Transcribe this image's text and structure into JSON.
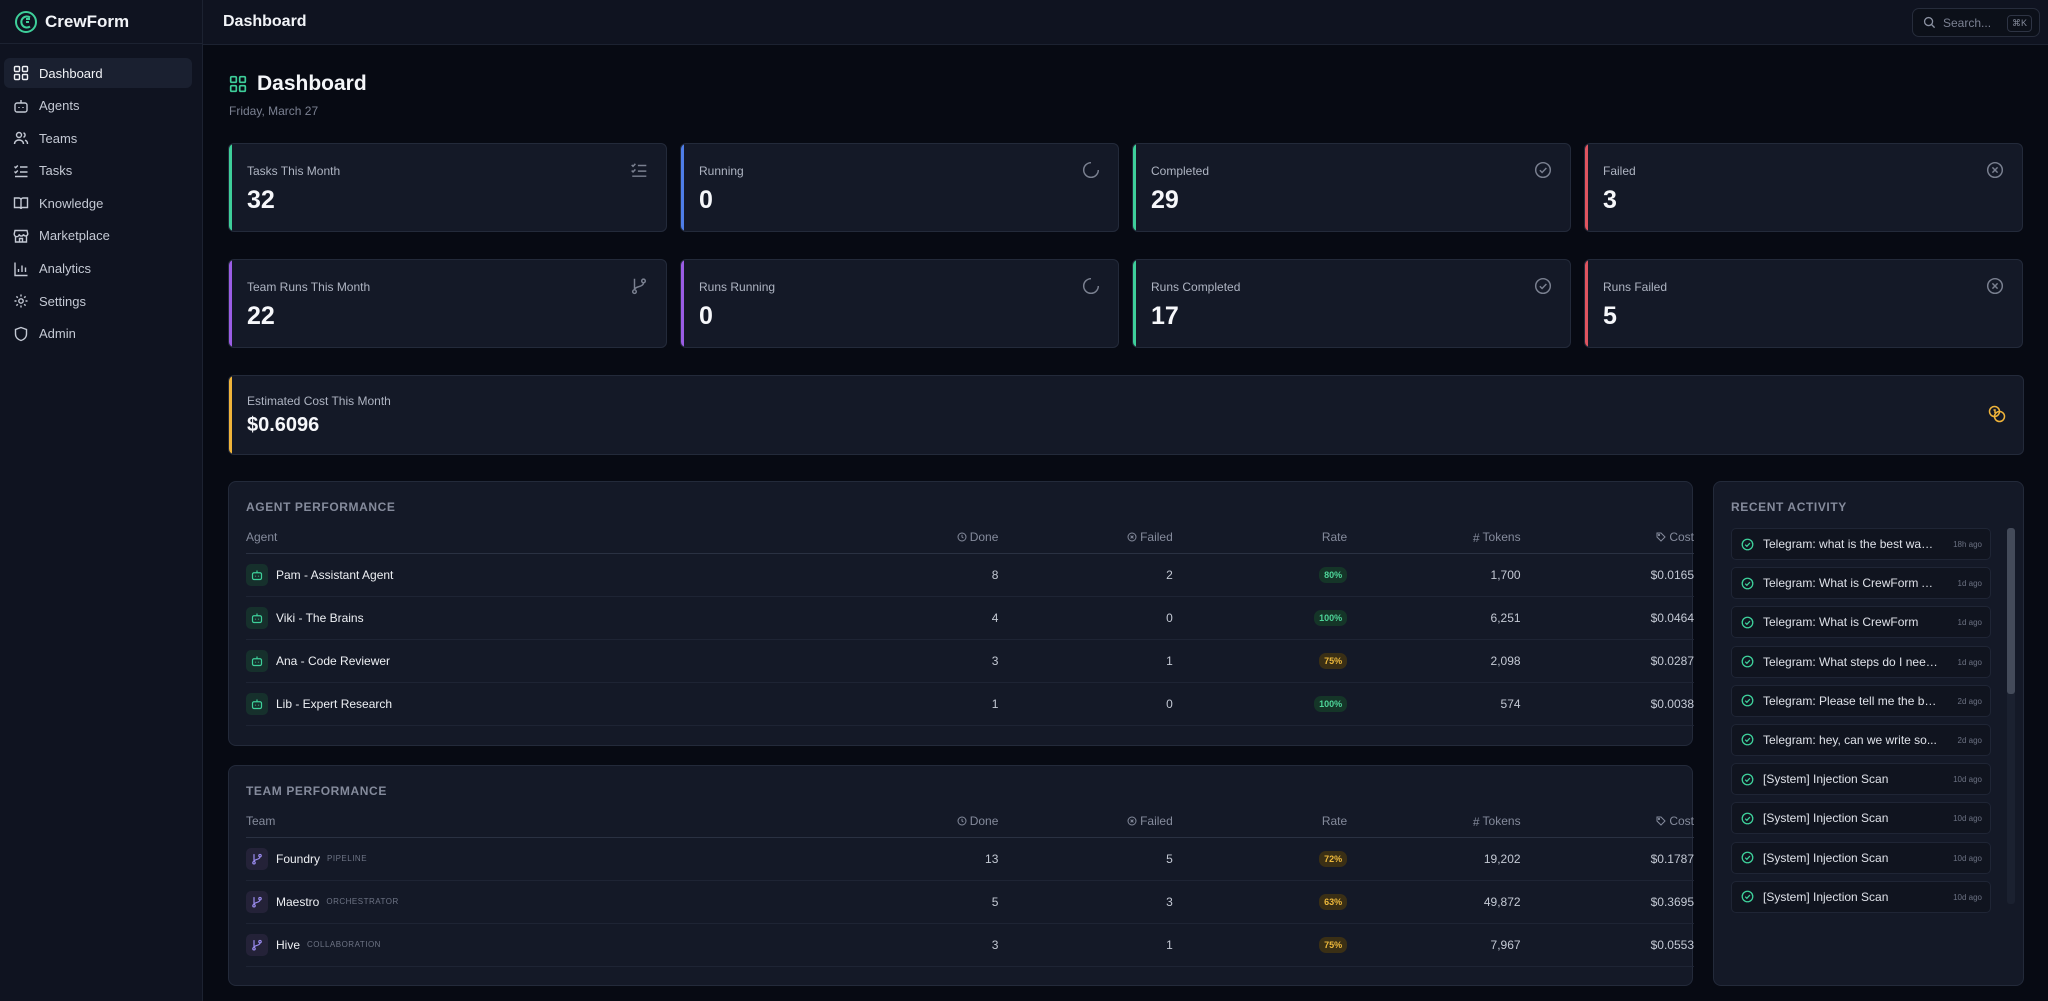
{
  "app": {
    "name": "CrewForm"
  },
  "sidebar": {
    "items": [
      {
        "label": "Dashboard",
        "icon": "dashboard-icon",
        "active": true
      },
      {
        "label": "Agents",
        "icon": "bot-icon"
      },
      {
        "label": "Teams",
        "icon": "users-icon"
      },
      {
        "label": "Tasks",
        "icon": "list-checks-icon"
      },
      {
        "label": "Knowledge",
        "icon": "book-icon"
      },
      {
        "label": "Marketplace",
        "icon": "store-icon"
      },
      {
        "label": "Analytics",
        "icon": "chart-icon"
      },
      {
        "label": "Settings",
        "icon": "gear-icon"
      },
      {
        "label": "Admin",
        "icon": "shield-icon"
      }
    ]
  },
  "topbar": {
    "title": "Dashboard",
    "search_placeholder": "Search...",
    "shortcut": "⌘K"
  },
  "page": {
    "title": "Dashboard",
    "date": "Friday, March 27"
  },
  "stats_tasks": [
    {
      "label": "Tasks This Month",
      "value": "32",
      "accent": "#3ecf9a",
      "icon": "list-checks-icon"
    },
    {
      "label": "Running",
      "value": "0",
      "accent": "#4f7ee8",
      "icon": "spinner-icon"
    },
    {
      "label": "Completed",
      "value": "29",
      "accent": "#3ecf9a",
      "icon": "check-circle-icon"
    },
    {
      "label": "Failed",
      "value": "3",
      "accent": "#e05560",
      "icon": "x-circle-icon"
    }
  ],
  "stats_runs": [
    {
      "label": "Team Runs This Month",
      "value": "22",
      "accent": "#9b5de5",
      "icon": "git-branch-icon"
    },
    {
      "label": "Runs Running",
      "value": "0",
      "accent": "#9b5de5",
      "icon": "spinner-icon"
    },
    {
      "label": "Runs Completed",
      "value": "17",
      "accent": "#3ecf9a",
      "icon": "check-circle-icon"
    },
    {
      "label": "Runs Failed",
      "value": "5",
      "accent": "#e05560",
      "icon": "x-circle-icon"
    }
  ],
  "cost": {
    "label": "Estimated Cost This Month",
    "value": "$0.6096",
    "accent": "#f0b43a",
    "icon": "coins-icon"
  },
  "agent_performance": {
    "title": "AGENT PERFORMANCE",
    "columns": [
      "Agent",
      "Done",
      "Failed",
      "Rate",
      "Tokens",
      "Cost"
    ],
    "rows": [
      {
        "name": "Pam - Assistant Agent",
        "done": "8",
        "failed": "2",
        "rate": "80%",
        "rate_status": "good",
        "tokens": "1,700",
        "cost": "$0.0165"
      },
      {
        "name": "Viki - The Brains",
        "done": "4",
        "failed": "0",
        "rate": "100%",
        "rate_status": "good",
        "tokens": "6,251",
        "cost": "$0.0464"
      },
      {
        "name": "Ana - Code Reviewer",
        "done": "3",
        "failed": "1",
        "rate": "75%",
        "rate_status": "warn",
        "tokens": "2,098",
        "cost": "$0.0287"
      },
      {
        "name": "Lib - Expert Research",
        "done": "1",
        "failed": "0",
        "rate": "100%",
        "rate_status": "good",
        "tokens": "574",
        "cost": "$0.0038"
      }
    ]
  },
  "team_performance": {
    "title": "TEAM PERFORMANCE",
    "columns": [
      "Team",
      "Done",
      "Failed",
      "Rate",
      "Tokens",
      "Cost"
    ],
    "rows": [
      {
        "name": "Foundry",
        "tag": "PIPELINE",
        "done": "13",
        "failed": "5",
        "rate": "72%",
        "rate_status": "warn",
        "tokens": "19,202",
        "cost": "$0.1787"
      },
      {
        "name": "Maestro",
        "tag": "ORCHESTRATOR",
        "done": "5",
        "failed": "3",
        "rate": "63%",
        "rate_status": "warn",
        "tokens": "49,872",
        "cost": "$0.3695"
      },
      {
        "name": "Hive",
        "tag": "COLLABORATION",
        "done": "3",
        "failed": "1",
        "rate": "75%",
        "rate_status": "warn",
        "tokens": "7,967",
        "cost": "$0.0553"
      }
    ]
  },
  "recent_activity": {
    "title": "RECENT ACTIVITY",
    "items": [
      {
        "text": "Telegram: what is the best way to...",
        "time": "18h ago"
      },
      {
        "text": "Telegram: What is CrewForm AI...",
        "time": "1d ago"
      },
      {
        "text": "Telegram: What is CrewForm",
        "time": "1d ago"
      },
      {
        "text": "Telegram: What steps do I need...",
        "time": "1d ago"
      },
      {
        "text": "Telegram: Please tell me the be...",
        "time": "2d ago"
      },
      {
        "text": "Telegram: hey, can we write so...",
        "time": "2d ago"
      },
      {
        "text": "[System] Injection Scan",
        "time": "10d ago"
      },
      {
        "text": "[System] Injection Scan",
        "time": "10d ago"
      },
      {
        "text": "[System] Injection Scan",
        "time": "10d ago"
      },
      {
        "text": "[System] Injection Scan",
        "time": "10d ago"
      }
    ]
  }
}
